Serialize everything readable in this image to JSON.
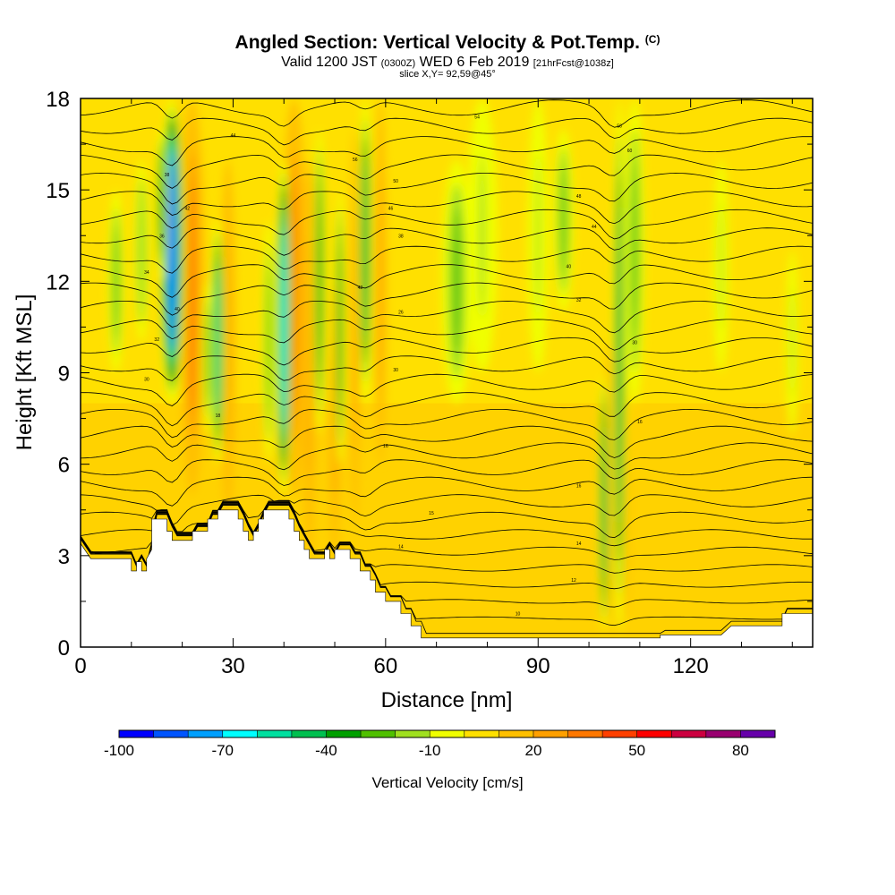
{
  "chart_data": {
    "type": "heatmap",
    "title": "Angled Section: Vertical Velocity & Pot.Temp.",
    "title_tag": "(C)",
    "subtitle_main": "Valid 1200 JST",
    "subtitle_z": "(0300Z)",
    "subtitle_date": "WED 6 Feb 2019",
    "subtitle_fcst": "[21hrFcst@1038z]",
    "slice_label": "slice X,Y= 92,59@45°",
    "xlabel": "Distance [nm]",
    "ylabel": "Height [Kft MSL]",
    "xlim": [
      0,
      144
    ],
    "ylim": [
      0,
      18
    ],
    "xticks": [
      0,
      30,
      60,
      90,
      120
    ],
    "yticks": [
      0,
      3,
      6,
      9,
      12,
      15,
      18
    ],
    "colorbar": {
      "title": "Vertical Velocity [cm/s]",
      "min": -100,
      "max": 90,
      "step": 10,
      "labels": [
        -100,
        -70,
        -40,
        -10,
        20,
        50,
        80
      ],
      "colors": [
        "#0000ff",
        "#0055ff",
        "#00a0ff",
        "#00ffff",
        "#00e0a0",
        "#00c050",
        "#00a000",
        "#50c000",
        "#a0e020",
        "#f0ff00",
        "#ffe000",
        "#ffc000",
        "#ffa000",
        "#ff7800",
        "#ff4000",
        "#ff0000",
        "#cc0040",
        "#990070",
        "#6600aa"
      ]
    },
    "terrain": [
      [
        0,
        3.4
      ],
      [
        2,
        2.9
      ],
      [
        10,
        2.9
      ],
      [
        10,
        2.5
      ],
      [
        11,
        2.5
      ],
      [
        11,
        2.8
      ],
      [
        12,
        2.8
      ],
      [
        12,
        2.5
      ],
      [
        13,
        2.5
      ],
      [
        13,
        2.9
      ],
      [
        14,
        3.2
      ],
      [
        14,
        4.2
      ],
      [
        17,
        4.2
      ],
      [
        17,
        3.8
      ],
      [
        18,
        3.8
      ],
      [
        18,
        3.5
      ],
      [
        19,
        3.5
      ],
      [
        19,
        3.5
      ],
      [
        22,
        3.5
      ],
      [
        22,
        3.8
      ],
      [
        25,
        3.8
      ],
      [
        25,
        4.2
      ],
      [
        27,
        4.2
      ],
      [
        27,
        4.5
      ],
      [
        31,
        4.5
      ],
      [
        31,
        4.2
      ],
      [
        32,
        4.2
      ],
      [
        32,
        3.8
      ],
      [
        33,
        3.8
      ],
      [
        33,
        3.5
      ],
      [
        34,
        3.5
      ],
      [
        34,
        3.8
      ],
      [
        35,
        3.8
      ],
      [
        35,
        4.2
      ],
      [
        36,
        4.2
      ],
      [
        36,
        4.5
      ],
      [
        41,
        4.5
      ],
      [
        41,
        4.2
      ],
      [
        42,
        4.2
      ],
      [
        42,
        3.8
      ],
      [
        43,
        3.8
      ],
      [
        43,
        3.5
      ],
      [
        44,
        3.5
      ],
      [
        44,
        3.2
      ],
      [
        45,
        3.2
      ],
      [
        45,
        2.9
      ],
      [
        48,
        2.9
      ],
      [
        48,
        3.2
      ],
      [
        49,
        3.2
      ],
      [
        49,
        2.9
      ],
      [
        50,
        2.9
      ],
      [
        50,
        3.2
      ],
      [
        53,
        3.2
      ],
      [
        53,
        2.9
      ],
      [
        55,
        2.9
      ],
      [
        55,
        2.5
      ],
      [
        57,
        2.5
      ],
      [
        57,
        2.2
      ],
      [
        58,
        2.2
      ],
      [
        58,
        1.8
      ],
      [
        60,
        1.8
      ],
      [
        60,
        1.5
      ],
      [
        63,
        1.5
      ],
      [
        63,
        1.1
      ],
      [
        65,
        1.1
      ],
      [
        65,
        0.7
      ],
      [
        67,
        0.7
      ],
      [
        67,
        0.3
      ],
      [
        114,
        0.3
      ],
      [
        114,
        0.4
      ],
      [
        121,
        0.4
      ],
      [
        126,
        0.4
      ],
      [
        128,
        0.7
      ],
      [
        138,
        0.7
      ],
      [
        138,
        1.1
      ],
      [
        144,
        1.1
      ],
      [
        144,
        0
      ]
    ],
    "theta_levels": [
      2,
      4,
      6,
      8,
      10,
      12,
      14,
      16,
      18,
      20,
      22,
      24,
      26,
      28,
      30,
      32,
      34,
      36,
      38,
      40,
      42,
      44,
      46,
      48,
      50,
      52,
      54,
      56,
      58,
      60,
      62,
      64,
      66
    ],
    "contour_labels": [
      {
        "x": 13,
        "y": 8.8,
        "text": "30"
      },
      {
        "x": 15,
        "y": 10.1,
        "text": "32"
      },
      {
        "x": 13,
        "y": 12.3,
        "text": "34"
      },
      {
        "x": 16,
        "y": 13.5,
        "text": "36"
      },
      {
        "x": 17,
        "y": 15.5,
        "text": "38"
      },
      {
        "x": 21,
        "y": 14.4,
        "text": "42"
      },
      {
        "x": 19,
        "y": 11.1,
        "text": "40"
      },
      {
        "x": 30,
        "y": 16.8,
        "text": "44"
      },
      {
        "x": 27,
        "y": 7.6,
        "text": "18"
      },
      {
        "x": 55,
        "y": 11.8,
        "text": "42"
      },
      {
        "x": 54,
        "y": 16.0,
        "text": "56"
      },
      {
        "x": 62,
        "y": 15.3,
        "text": "50"
      },
      {
        "x": 61,
        "y": 14.4,
        "text": "46"
      },
      {
        "x": 63,
        "y": 13.5,
        "text": "38"
      },
      {
        "x": 63,
        "y": 11.0,
        "text": "26"
      },
      {
        "x": 62,
        "y": 9.1,
        "text": "30"
      },
      {
        "x": 60,
        "y": 6.6,
        "text": "16"
      },
      {
        "x": 69,
        "y": 4.4,
        "text": "15"
      },
      {
        "x": 63,
        "y": 3.3,
        "text": "14"
      },
      {
        "x": 78,
        "y": 17.4,
        "text": "54"
      },
      {
        "x": 106,
        "y": 17.1,
        "text": "56"
      },
      {
        "x": 108,
        "y": 16.3,
        "text": "60"
      },
      {
        "x": 98,
        "y": 14.8,
        "text": "48"
      },
      {
        "x": 101,
        "y": 13.8,
        "text": "44"
      },
      {
        "x": 96,
        "y": 12.5,
        "text": "40"
      },
      {
        "x": 98,
        "y": 11.4,
        "text": "32"
      },
      {
        "x": 109,
        "y": 10.0,
        "text": "30"
      },
      {
        "x": 110,
        "y": 7.4,
        "text": "16"
      },
      {
        "x": 98,
        "y": 5.3,
        "text": "16"
      },
      {
        "x": 98,
        "y": 3.4,
        "text": "14"
      },
      {
        "x": 97,
        "y": 2.2,
        "text": "12"
      },
      {
        "x": 86,
        "y": 1.1,
        "text": "10"
      }
    ],
    "updraft_bands": [
      {
        "x": 22,
        "ymin": 5,
        "ymax": 18,
        "w": 2.5,
        "value": 35
      },
      {
        "x": 19,
        "ymin": 12,
        "ymax": 18,
        "w": 1.5,
        "value": 20
      },
      {
        "x": 29,
        "ymin": 4,
        "ymax": 16,
        "w": 1.5,
        "value": 20
      },
      {
        "x": 42,
        "ymin": 5,
        "ymax": 18,
        "w": 2.5,
        "value": 30
      },
      {
        "x": 45,
        "ymin": 3,
        "ymax": 16,
        "w": 1.5,
        "value": 20
      },
      {
        "x": 50,
        "ymin": 3,
        "ymax": 12,
        "w": 1.2,
        "value": 20
      },
      {
        "x": 54,
        "ymin": 4,
        "ymax": 17,
        "w": 1.0,
        "value": 20
      },
      {
        "x": 59,
        "ymin": 6,
        "ymax": 18,
        "w": 1.2,
        "value": 20
      },
      {
        "x": 104,
        "ymin": 1,
        "ymax": 10,
        "w": 1.0,
        "value": 20
      },
      {
        "x": 107,
        "ymin": 1,
        "ymax": 8,
        "w": 1.0,
        "value": 15
      }
    ],
    "downdraft_bands": [
      {
        "x": 18,
        "ymin": 8,
        "ymax": 18,
        "w": 2.5,
        "value": -85
      },
      {
        "x": 16,
        "ymin": 12,
        "ymax": 17,
        "w": 1.2,
        "value": -40
      },
      {
        "x": 27,
        "ymin": 6,
        "ymax": 14,
        "w": 1.4,
        "value": -55
      },
      {
        "x": 25,
        "ymin": 7,
        "ymax": 12,
        "w": 1.0,
        "value": -30
      },
      {
        "x": 40,
        "ymin": 5,
        "ymax": 16,
        "w": 1.6,
        "value": -70
      },
      {
        "x": 37,
        "ymin": 6,
        "ymax": 14,
        "w": 1.2,
        "value": -30
      },
      {
        "x": 47,
        "ymin": 7,
        "ymax": 17,
        "w": 1.2,
        "value": -40
      },
      {
        "x": 51,
        "ymin": 6,
        "ymax": 15,
        "w": 1.0,
        "value": -40
      },
      {
        "x": 56,
        "ymin": 8,
        "ymax": 18,
        "w": 1.4,
        "value": -45
      },
      {
        "x": 7,
        "ymin": 9,
        "ymax": 15,
        "w": 1.6,
        "value": -25
      },
      {
        "x": 12,
        "ymin": 10,
        "ymax": 16,
        "w": 1.4,
        "value": -20
      },
      {
        "x": 74,
        "ymin": 8,
        "ymax": 16,
        "w": 3,
        "value": -25
      },
      {
        "x": 79,
        "ymin": 9,
        "ymax": 18,
        "w": 3,
        "value": -15
      },
      {
        "x": 90,
        "ymin": 9,
        "ymax": 18,
        "w": 2,
        "value": -15
      },
      {
        "x": 95,
        "ymin": 11,
        "ymax": 17,
        "w": 2,
        "value": -30
      },
      {
        "x": 103,
        "ymin": 0.5,
        "ymax": 9,
        "w": 1.0,
        "value": -50
      },
      {
        "x": 106,
        "ymin": 0.5,
        "ymax": 18,
        "w": 1.3,
        "value": -45
      },
      {
        "x": 109,
        "ymin": 8,
        "ymax": 18,
        "w": 2,
        "value": -25
      },
      {
        "x": 126,
        "ymin": 9,
        "ymax": 16,
        "w": 1.5,
        "value": -15
      },
      {
        "x": 140,
        "ymin": 7,
        "ymax": 13,
        "w": 1.2,
        "value": -15
      }
    ]
  }
}
